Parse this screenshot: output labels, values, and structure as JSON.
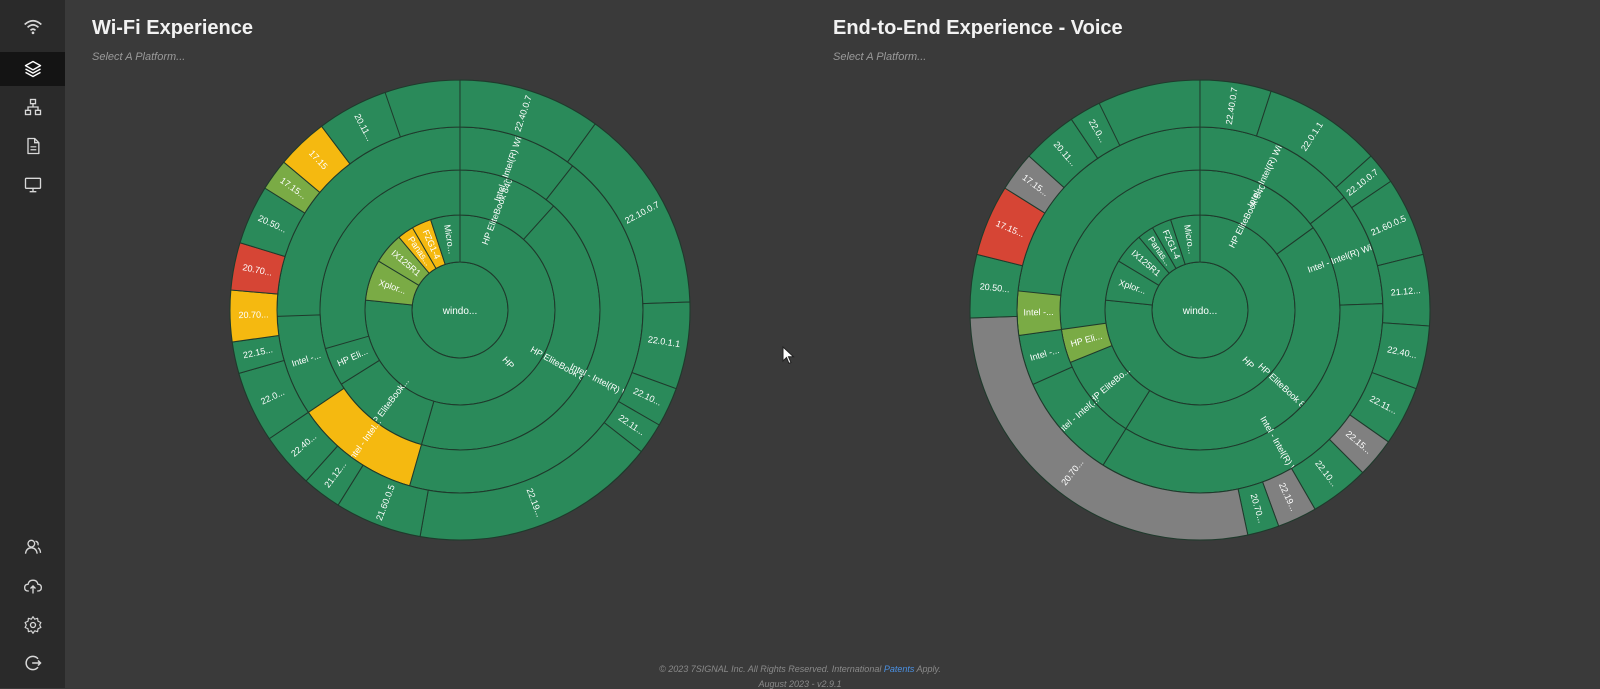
{
  "sidebar": {
    "top_items": [
      {
        "name": "wifi-icon",
        "active": false
      },
      {
        "name": "layers-icon",
        "active": true
      },
      {
        "name": "network-topology-icon",
        "active": false
      },
      {
        "name": "document-icon",
        "active": false
      },
      {
        "name": "monitor-icon",
        "active": false
      }
    ],
    "bottom_items": [
      {
        "name": "users-icon"
      },
      {
        "name": "cloud-upload-icon"
      },
      {
        "name": "gear-icon"
      },
      {
        "name": "logout-icon"
      }
    ]
  },
  "colors": {
    "green": "#2a8a5a",
    "light_green": "#7aab45",
    "yellow": "#f5b910",
    "red": "#d64535",
    "gray": "#808080",
    "orange": "#e8862a",
    "border": "#1f3a2c"
  },
  "panels": [
    {
      "title": "Wi-Fi Experience",
      "select_placeholder": "Select A Platform...",
      "center_label": "windo...",
      "sunburst": [
        {
          "ring": 1,
          "label": "HP",
          "color": "green",
          "share": 0.78
        },
        {
          "ring": 1,
          "label": "Xplor...",
          "color": "light_green",
          "share": 0.05
        },
        {
          "ring": 1,
          "label": "IX125R1",
          "color": "light_green",
          "share": 0.05
        },
        {
          "ring": 1,
          "label": "Panas...",
          "color": "yellow",
          "share": 0.03
        },
        {
          "ring": 1,
          "label": "FZG1-4",
          "color": "yellow",
          "share": 0.02
        },
        {
          "ring": 1,
          "label": "Micro...",
          "color": "green",
          "share": 0.04
        },
        {
          "ring": 2,
          "label": "HP EliteBook 840 G8 ...",
          "color": "green"
        },
        {
          "ring": 2,
          "label": "HP EliteBook 84...",
          "color": "green"
        },
        {
          "ring": 2,
          "label": "HP EliteBook...",
          "color": "green"
        },
        {
          "ring": 2,
          "label": "HP Eli...",
          "color": "green"
        },
        {
          "ring": 3,
          "label": "Intel - Intel(R) Wi-Fi 6...",
          "color": "green"
        },
        {
          "ring": 3,
          "label": "Intel - Intel(R) Wi...",
          "color": "green"
        },
        {
          "ring": 3,
          "label": "Intel - Intel...",
          "color": "yellow"
        },
        {
          "ring": 3,
          "label": "Intel -...",
          "color": "green"
        },
        {
          "ring": 4,
          "label": "22.40.0.7",
          "color": "green"
        },
        {
          "ring": 4,
          "label": "22.10.0.7",
          "color": "green"
        },
        {
          "ring": 4,
          "label": "22.0.1.1",
          "color": "green"
        },
        {
          "ring": 4,
          "label": "22.10...",
          "color": "green"
        },
        {
          "ring": 4,
          "label": "22.11...",
          "color": "green"
        },
        {
          "ring": 4,
          "label": "22.19...",
          "color": "green"
        },
        {
          "ring": 4,
          "label": "21.60.0.5",
          "color": "green"
        },
        {
          "ring": 4,
          "label": "21.12...",
          "color": "green"
        },
        {
          "ring": 4,
          "label": "22.40...",
          "color": "green"
        },
        {
          "ring": 4,
          "label": "22.0...",
          "color": "green"
        },
        {
          "ring": 4,
          "label": "22.15...",
          "color": "green"
        },
        {
          "ring": 4,
          "label": "20.70...",
          "color": "yellow"
        },
        {
          "ring": 4,
          "label": "20.70...",
          "color": "red"
        },
        {
          "ring": 4,
          "label": "20.50...",
          "color": "green"
        },
        {
          "ring": 4,
          "label": "17.15...",
          "color": "light_green"
        },
        {
          "ring": 4,
          "label": "17.15",
          "color": "yellow"
        },
        {
          "ring": 4,
          "label": "20.11...",
          "color": "green"
        }
      ]
    },
    {
      "title": "End-to-End Experience - Voice",
      "select_placeholder": "Select A Platform...",
      "center_label": "windo...",
      "sunburst": [
        {
          "ring": 1,
          "label": "HP",
          "color": "green",
          "share": 0.78
        },
        {
          "ring": 1,
          "label": "Xplor...",
          "color": "green",
          "share": 0.05
        },
        {
          "ring": 1,
          "label": "IX125R1",
          "color": "green",
          "share": 0.05
        },
        {
          "ring": 1,
          "label": "Panas...",
          "color": "green",
          "share": 0.03
        },
        {
          "ring": 1,
          "label": "FZG1-4",
          "color": "green",
          "share": 0.02
        },
        {
          "ring": 1,
          "label": "Micro...",
          "color": "green",
          "share": 0.04
        },
        {
          "ring": 2,
          "label": "HP EliteBook 840 G8 ...",
          "color": "green"
        },
        {
          "ring": 2,
          "label": "HP EliteBook 84...",
          "color": "green"
        },
        {
          "ring": 2,
          "label": "HP EliteBo...",
          "color": "green"
        },
        {
          "ring": 2,
          "label": "HP Eli...",
          "color": "light_green"
        },
        {
          "ring": 3,
          "label": "Intel - Intel(R) Wi-Fi 6...",
          "color": "green"
        },
        {
          "ring": 3,
          "label": "Intel - Intel(R) Wi-Fi 6...",
          "color": "green"
        },
        {
          "ring": 3,
          "label": "Intel - Intel(R) Wi...",
          "color": "green"
        },
        {
          "ring": 3,
          "label": "Intel - Intel(...",
          "color": "green"
        },
        {
          "ring": 3,
          "label": "Intel -...",
          "color": "green"
        },
        {
          "ring": 3,
          "label": "Intel -...",
          "color": "light_green"
        },
        {
          "ring": 4,
          "label": "22.40.0.7",
          "color": "green"
        },
        {
          "ring": 4,
          "label": "22.0.1.1",
          "color": "green"
        },
        {
          "ring": 4,
          "label": "22.10.0.7",
          "color": "green"
        },
        {
          "ring": 4,
          "label": "21.60.0.5",
          "color": "green"
        },
        {
          "ring": 4,
          "label": "21.12...",
          "color": "green"
        },
        {
          "ring": 4,
          "label": "22.40...",
          "color": "green"
        },
        {
          "ring": 4,
          "label": "22.11...",
          "color": "green"
        },
        {
          "ring": 4,
          "label": "22.15...",
          "color": "gray"
        },
        {
          "ring": 4,
          "label": "22.10...",
          "color": "green"
        },
        {
          "ring": 4,
          "label": "22.19...",
          "color": "gray"
        },
        {
          "ring": 4,
          "label": "20.70...",
          "color": "green"
        },
        {
          "ring": 4,
          "label": "20.70...",
          "color": "gray"
        },
        {
          "ring": 4,
          "label": "20.50...",
          "color": "green"
        },
        {
          "ring": 4,
          "label": "17.15...",
          "color": "red"
        },
        {
          "ring": 4,
          "label": "17.15...",
          "color": "gray"
        },
        {
          "ring": 4,
          "label": "20.11...",
          "color": "green"
        },
        {
          "ring": 4,
          "label": "22.0...",
          "color": "green"
        }
      ]
    }
  ],
  "footer": {
    "copyright": "© 2023 7SIGNAL Inc. All Rights Reserved. International",
    "patents_link": "Patents",
    "patents_suffix": "Apply.",
    "version": "August 2023 - v2.9.1"
  }
}
